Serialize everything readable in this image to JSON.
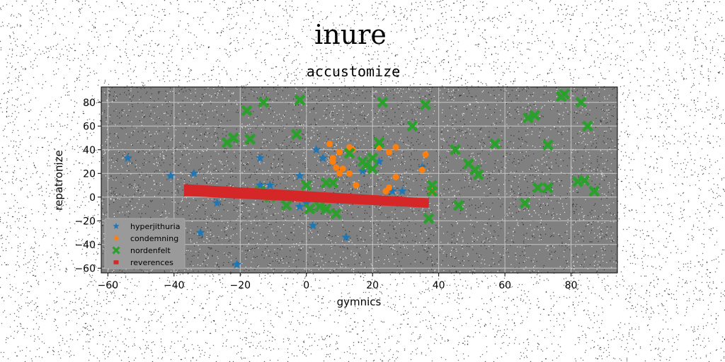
{
  "chart_data": {
    "type": "scatter",
    "suptitle": "inure",
    "title": "accustomize",
    "xlabel": "gymnics",
    "ylabel": "repatronize",
    "xlim": [
      -62,
      94
    ],
    "ylim": [
      -64,
      93
    ],
    "xticks": [
      -60,
      -40,
      -20,
      0,
      20,
      40,
      60,
      80
    ],
    "yticks": [
      -60,
      -40,
      -20,
      0,
      20,
      40,
      60,
      80
    ],
    "grid": true,
    "legend_position": "lower-left",
    "background": "#808080",
    "series": [
      {
        "name": "hyperjithuria",
        "marker": "star",
        "color": "#1f77b4",
        "points": [
          [
            -54,
            33
          ],
          [
            -41,
            18
          ],
          [
            -34,
            20
          ],
          [
            -27,
            -5
          ],
          [
            -32,
            -30
          ],
          [
            -21,
            -57
          ],
          [
            -14,
            33
          ],
          [
            -14,
            10
          ],
          [
            -11,
            10
          ],
          [
            -2,
            18
          ],
          [
            -2,
            -8
          ],
          [
            0,
            -5
          ],
          [
            2,
            -24
          ],
          [
            3,
            40
          ],
          [
            5,
            33
          ],
          [
            10,
            -3
          ],
          [
            12,
            -34
          ],
          [
            17,
            22
          ],
          [
            22,
            30
          ],
          [
            26,
            5
          ],
          [
            29,
            5
          ],
          [
            35,
            25
          ]
        ]
      },
      {
        "name": "condemning",
        "marker": "circle",
        "color": "#ff7f0e",
        "points": [
          [
            7,
            45
          ],
          [
            8,
            30
          ],
          [
            8,
            33
          ],
          [
            9,
            25
          ],
          [
            10,
            38
          ],
          [
            10,
            20
          ],
          [
            11,
            24
          ],
          [
            13,
            42
          ],
          [
            13,
            20
          ],
          [
            14,
            40
          ],
          [
            15,
            10
          ],
          [
            22,
            42
          ],
          [
            25,
            38
          ],
          [
            27,
            42
          ],
          [
            27,
            17
          ],
          [
            25,
            8
          ],
          [
            24,
            5
          ],
          [
            35,
            23
          ],
          [
            36,
            36
          ],
          [
            38,
            5
          ]
        ]
      },
      {
        "name": "nordenfelt",
        "marker": "x",
        "color": "#2ca02c",
        "points": [
          [
            -18,
            73
          ],
          [
            -13,
            80
          ],
          [
            -2,
            82
          ],
          [
            -17,
            49
          ],
          [
            -24,
            46
          ],
          [
            -22,
            50
          ],
          [
            -3,
            53
          ],
          [
            -14,
            5
          ],
          [
            -11,
            0
          ],
          [
            -6,
            -7
          ],
          [
            0,
            10
          ],
          [
            1,
            -10
          ],
          [
            4,
            -8
          ],
          [
            6,
            -10
          ],
          [
            6,
            12
          ],
          [
            8,
            12
          ],
          [
            9,
            -14
          ],
          [
            13,
            37
          ],
          [
            17,
            30
          ],
          [
            18,
            27
          ],
          [
            20,
            33
          ],
          [
            20,
            24
          ],
          [
            22,
            46
          ],
          [
            23,
            80
          ],
          [
            32,
            60
          ],
          [
            36,
            78
          ],
          [
            38,
            10
          ],
          [
            37,
            -18
          ],
          [
            38,
            5
          ],
          [
            45,
            40
          ],
          [
            46,
            -7
          ],
          [
            49,
            28
          ],
          [
            51,
            23
          ],
          [
            52,
            19
          ],
          [
            57,
            45
          ],
          [
            67,
            67
          ],
          [
            69,
            69
          ],
          [
            70,
            8
          ],
          [
            73,
            8
          ],
          [
            73,
            44
          ],
          [
            66,
            -5
          ],
          [
            77,
            85
          ],
          [
            78,
            87
          ],
          [
            83,
            80
          ],
          [
            85,
            60
          ],
          [
            82,
            13
          ],
          [
            84,
            14
          ],
          [
            87,
            5
          ]
        ]
      },
      {
        "name": "reverences",
        "marker": "band",
        "color": "#d62728",
        "x": [
          -37,
          37
        ],
        "y_top": [
          11,
          -1
        ],
        "y_bottom": [
          1,
          -9
        ]
      }
    ]
  }
}
